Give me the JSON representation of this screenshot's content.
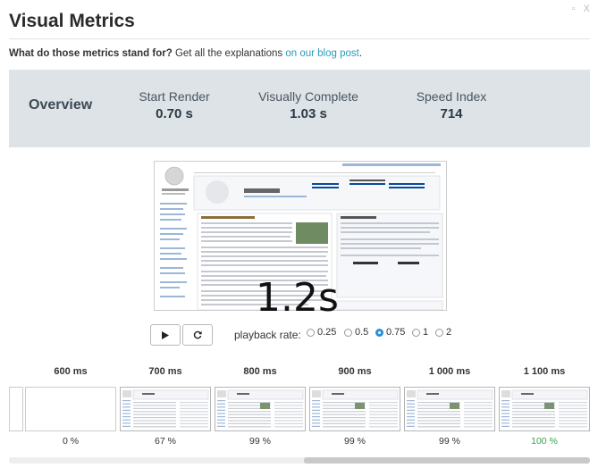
{
  "window": {
    "controls": "▫ X"
  },
  "header": {
    "title": "Visual Metrics"
  },
  "intro": {
    "question": "What do those metrics stand for?",
    "text": " Get all the explanations ",
    "link": "on our blog post",
    "suffix": "."
  },
  "overview": {
    "label": "Overview",
    "metrics": [
      {
        "label": "Start Render",
        "value": "0.70 s"
      },
      {
        "label": "Visually Complete",
        "value": "1.03 s"
      },
      {
        "label": "Speed Index",
        "value": "714"
      }
    ]
  },
  "player": {
    "time": "1.2s",
    "play_icon": "play-icon",
    "replay_icon": "replay-icon",
    "rate_label": "playback rate:",
    "rates": [
      "0.25",
      "0.5",
      "0.75",
      "1",
      "2"
    ],
    "selected_rate": "0.75"
  },
  "filmstrip": {
    "frames": [
      {
        "time": "600 ms",
        "percent": "0 %"
      },
      {
        "time": "700 ms",
        "percent": "67 %"
      },
      {
        "time": "800 ms",
        "percent": "99 %"
      },
      {
        "time": "900 ms",
        "percent": "99 %"
      },
      {
        "time": "1 000 ms",
        "percent": "99 %"
      },
      {
        "time": "1 100 ms",
        "percent": "100 %"
      }
    ]
  },
  "colors": {
    "accent": "#2a9bb8",
    "complete": "#3aa24b",
    "overview_bg": "#dde3e6"
  }
}
